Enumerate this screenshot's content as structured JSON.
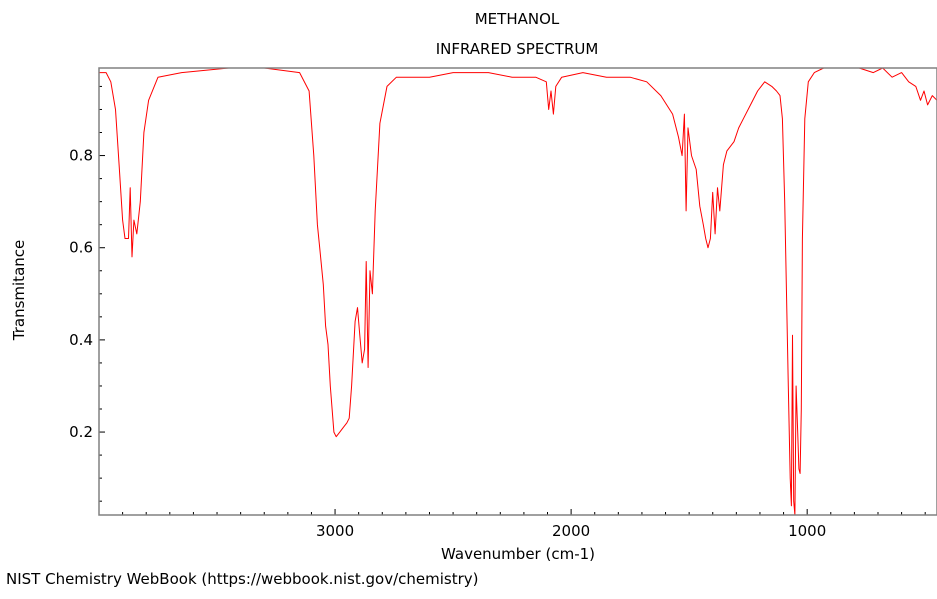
{
  "footer": "NIST Chemistry WebBook (https://webbook.nist.gov/chemistry)",
  "colors": {
    "spectrum": "#ff0000",
    "frame": "#808080",
    "axis": "#000000"
  },
  "chart_data": {
    "type": "line",
    "title_lines": [
      "METHANOL",
      "INFRARED SPECTRUM"
    ],
    "xlabel": "Wavenumber (cm-1)",
    "ylabel": "Transmitance",
    "xlim": [
      4000,
      450
    ],
    "ylim": [
      0.02,
      0.99
    ],
    "x_inverted": true,
    "x_ticks": [
      3000,
      2000,
      1000
    ],
    "y_ticks": [
      0.2,
      0.4,
      0.6,
      0.8
    ],
    "grid": false,
    "series": [
      {
        "points": [
          [
            4000,
            0.98
          ],
          [
            3970,
            0.98
          ],
          [
            3950,
            0.96
          ],
          [
            3930,
            0.9
          ],
          [
            3915,
            0.78
          ],
          [
            3900,
            0.66
          ],
          [
            3890,
            0.62
          ],
          [
            3875,
            0.62
          ],
          [
            3868,
            0.73
          ],
          [
            3860,
            0.58
          ],
          [
            3852,
            0.66
          ],
          [
            3840,
            0.63
          ],
          [
            3825,
            0.7
          ],
          [
            3810,
            0.85
          ],
          [
            3790,
            0.92
          ],
          [
            3750,
            0.97
          ],
          [
            3650,
            0.98
          ],
          [
            3450,
            0.99
          ],
          [
            3300,
            0.99
          ],
          [
            3150,
            0.98
          ],
          [
            3110,
            0.94
          ],
          [
            3090,
            0.8
          ],
          [
            3075,
            0.65
          ],
          [
            3065,
            0.6
          ],
          [
            3050,
            0.52
          ],
          [
            3040,
            0.43
          ],
          [
            3030,
            0.39
          ],
          [
            3020,
            0.3
          ],
          [
            3005,
            0.2
          ],
          [
            2995,
            0.19
          ],
          [
            2980,
            0.2
          ],
          [
            2965,
            0.21
          ],
          [
            2950,
            0.22
          ],
          [
            2940,
            0.23
          ],
          [
            2930,
            0.3
          ],
          [
            2915,
            0.44
          ],
          [
            2905,
            0.47
          ],
          [
            2895,
            0.41
          ],
          [
            2885,
            0.35
          ],
          [
            2875,
            0.38
          ],
          [
            2868,
            0.57
          ],
          [
            2860,
            0.34
          ],
          [
            2852,
            0.55
          ],
          [
            2842,
            0.5
          ],
          [
            2830,
            0.68
          ],
          [
            2810,
            0.87
          ],
          [
            2780,
            0.95
          ],
          [
            2740,
            0.97
          ],
          [
            2600,
            0.97
          ],
          [
            2500,
            0.98
          ],
          [
            2350,
            0.98
          ],
          [
            2250,
            0.97
          ],
          [
            2150,
            0.97
          ],
          [
            2105,
            0.96
          ],
          [
            2095,
            0.9
          ],
          [
            2085,
            0.94
          ],
          [
            2075,
            0.89
          ],
          [
            2065,
            0.95
          ],
          [
            2040,
            0.97
          ],
          [
            1950,
            0.98
          ],
          [
            1850,
            0.97
          ],
          [
            1750,
            0.97
          ],
          [
            1680,
            0.96
          ],
          [
            1620,
            0.93
          ],
          [
            1570,
            0.89
          ],
          [
            1545,
            0.84
          ],
          [
            1530,
            0.8
          ],
          [
            1520,
            0.89
          ],
          [
            1513,
            0.68
          ],
          [
            1505,
            0.86
          ],
          [
            1490,
            0.8
          ],
          [
            1470,
            0.77
          ],
          [
            1455,
            0.69
          ],
          [
            1440,
            0.65
          ],
          [
            1430,
            0.62
          ],
          [
            1420,
            0.6
          ],
          [
            1410,
            0.62
          ],
          [
            1400,
            0.72
          ],
          [
            1390,
            0.63
          ],
          [
            1380,
            0.73
          ],
          [
            1370,
            0.68
          ],
          [
            1355,
            0.78
          ],
          [
            1340,
            0.81
          ],
          [
            1310,
            0.83
          ],
          [
            1290,
            0.86
          ],
          [
            1270,
            0.88
          ],
          [
            1240,
            0.91
          ],
          [
            1210,
            0.94
          ],
          [
            1180,
            0.96
          ],
          [
            1150,
            0.95
          ],
          [
            1130,
            0.94
          ],
          [
            1115,
            0.93
          ],
          [
            1105,
            0.88
          ],
          [
            1095,
            0.7
          ],
          [
            1080,
            0.3
          ],
          [
            1072,
            0.1
          ],
          [
            1067,
            0.04
          ],
          [
            1062,
            0.41
          ],
          [
            1057,
            0.05
          ],
          [
            1052,
            0.02
          ],
          [
            1047,
            0.3
          ],
          [
            1040,
            0.2
          ],
          [
            1035,
            0.12
          ],
          [
            1030,
            0.11
          ],
          [
            1025,
            0.25
          ],
          [
            1020,
            0.62
          ],
          [
            1010,
            0.88
          ],
          [
            995,
            0.96
          ],
          [
            970,
            0.98
          ],
          [
            930,
            0.99
          ],
          [
            850,
            0.99
          ],
          [
            780,
            0.99
          ],
          [
            720,
            0.98
          ],
          [
            680,
            0.99
          ],
          [
            640,
            0.97
          ],
          [
            600,
            0.98
          ],
          [
            570,
            0.96
          ],
          [
            540,
            0.95
          ],
          [
            520,
            0.92
          ],
          [
            505,
            0.94
          ],
          [
            490,
            0.91
          ],
          [
            470,
            0.93
          ],
          [
            450,
            0.92
          ]
        ]
      }
    ]
  }
}
